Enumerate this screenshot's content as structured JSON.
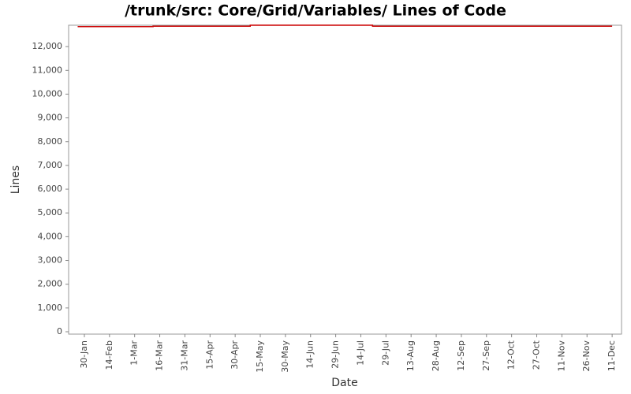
{
  "chart_data": {
    "type": "line",
    "title": "/trunk/src: Core/Grid/Variables/ Lines of Code",
    "xlabel": "Date",
    "ylabel": "Lines",
    "x": [
      -4,
      41,
      41,
      99,
      99,
      172,
      172,
      315
    ],
    "series": [
      {
        "name": "Lines",
        "color": "#cc0000",
        "values": [
          12840,
          12840,
          12860,
          12860,
          12900,
          12900,
          12860,
          12860
        ]
      }
    ],
    "xlim": [
      -9.4,
      320.6
    ],
    "xticks": [
      {
        "value": 0,
        "label": "30-Jan"
      },
      {
        "value": 15,
        "label": "14-Feb"
      },
      {
        "value": 30,
        "label": "1-Mar"
      },
      {
        "value": 45,
        "label": "16-Mar"
      },
      {
        "value": 60,
        "label": "31-Mar"
      },
      {
        "value": 75,
        "label": "15-Apr"
      },
      {
        "value": 90,
        "label": "30-Apr"
      },
      {
        "value": 105,
        "label": "15-May"
      },
      {
        "value": 120,
        "label": "30-May"
      },
      {
        "value": 135,
        "label": "14-Jun"
      },
      {
        "value": 150,
        "label": "29-Jun"
      },
      {
        "value": 165,
        "label": "14-Jul"
      },
      {
        "value": 180,
        "label": "29-Jul"
      },
      {
        "value": 195,
        "label": "13-Aug"
      },
      {
        "value": 210,
        "label": "28-Aug"
      },
      {
        "value": 225,
        "label": "12-Sep"
      },
      {
        "value": 240,
        "label": "27-Sep"
      },
      {
        "value": 255,
        "label": "12-Oct"
      },
      {
        "value": 270,
        "label": "27-Oct"
      },
      {
        "value": 285,
        "label": "11-Nov"
      },
      {
        "value": 300,
        "label": "26-Nov"
      },
      {
        "value": 315,
        "label": "11-Dec"
      }
    ],
    "ylim": [
      -100,
      12900
    ],
    "yticks": [
      0,
      {
        "value": 1000,
        "label": "1,000"
      },
      {
        "value": 2000,
        "label": "2,000"
      },
      {
        "value": 3000,
        "label": "3,000"
      },
      {
        "value": 4000,
        "label": "4,000"
      },
      {
        "value": 5000,
        "label": "5,000"
      },
      {
        "value": 6000,
        "label": "6,000"
      },
      {
        "value": 7000,
        "label": "7,000"
      },
      {
        "value": 8000,
        "label": "8,000"
      },
      {
        "value": 9000,
        "label": "9,000"
      },
      {
        "value": 10000,
        "label": "10,000"
      },
      {
        "value": 11000,
        "label": "11,000"
      },
      {
        "value": 12000,
        "label": "12,000"
      }
    ],
    "grid": false
  }
}
